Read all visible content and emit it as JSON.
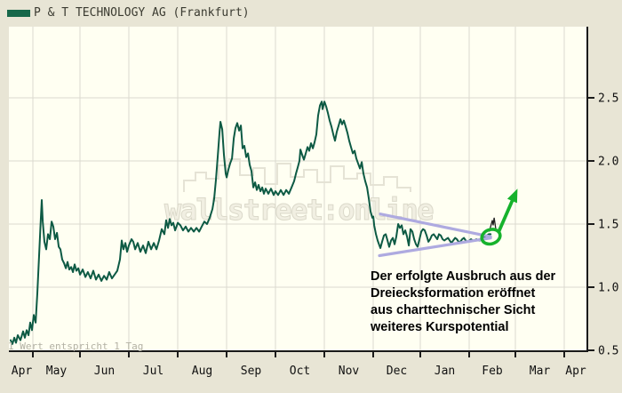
{
  "header": {
    "title": "P & T TECHNOLOGY AG (Frankfurt)",
    "legend_color": "#17684a"
  },
  "footnote": "1 Wert entspricht 1 Tag",
  "watermark": "wallstreet:online",
  "annotation": {
    "lines": [
      "Der erfolgte Ausbruch aus der",
      "Dreiecksformation eröffnet",
      "aus charttechnischer Sicht",
      "weiteres Kurspotential"
    ]
  },
  "colors": {
    "price_line": "#0d5a44",
    "triangle": "#aeaae0",
    "breakout_green": "#16b22c",
    "axis": "#1a1a1a",
    "grid": "#dbdad0",
    "plot_bg": "#fffff2",
    "frame_bg": "#e8e5d5"
  },
  "chart_data": {
    "type": "line",
    "title": "P & T TECHNOLOGY AG (Frankfurt)",
    "x_axis": {
      "unit": "day",
      "note": "1 Wert entspricht 1 Tag",
      "month_labels": [
        "Apr",
        "May",
        "Jun",
        "Jul",
        "Aug",
        "Sep",
        "Oct",
        "Nov",
        "Dec",
        "Jan",
        "Feb",
        "Mar",
        "Apr"
      ]
    },
    "y_axis": {
      "ticks": [
        0.5,
        1.0,
        1.5,
        2.0,
        2.5
      ],
      "range": [
        0.5,
        3.05
      ],
      "grid": true
    },
    "legend_position": "top-left",
    "series": [
      {
        "name": "P & T TECHNOLOGY AG",
        "color": "#0d5a44",
        "points": [
          [
            0,
            0.58
          ],
          [
            1.1,
            0.55
          ],
          [
            2.3,
            0.6
          ],
          [
            3.4,
            0.56
          ],
          [
            4.5,
            0.62
          ],
          [
            6.2,
            0.58
          ],
          [
            7.9,
            0.65
          ],
          [
            9,
            0.6
          ],
          [
            10.1,
            0.66
          ],
          [
            11.3,
            0.62
          ],
          [
            12.4,
            0.72
          ],
          [
            13.5,
            0.66
          ],
          [
            14.6,
            0.78
          ],
          [
            15.8,
            0.72
          ],
          [
            16.9,
            0.95
          ],
          [
            18,
            1.25
          ],
          [
            19.1,
            1.55
          ],
          [
            19.7,
            1.69
          ],
          [
            20.3,
            1.52
          ],
          [
            21.4,
            1.36
          ],
          [
            22.5,
            1.3
          ],
          [
            23.6,
            1.42
          ],
          [
            24.8,
            1.38
          ],
          [
            25.9,
            1.52
          ],
          [
            27,
            1.48
          ],
          [
            28.1,
            1.38
          ],
          [
            29.3,
            1.43
          ],
          [
            30.4,
            1.32
          ],
          [
            31.5,
            1.3
          ],
          [
            32.6,
            1.22
          ],
          [
            33.8,
            1.19
          ],
          [
            34.9,
            1.15
          ],
          [
            36,
            1.2
          ],
          [
            37.1,
            1.14
          ],
          [
            38.3,
            1.16
          ],
          [
            39.4,
            1.12
          ],
          [
            40.5,
            1.18
          ],
          [
            41.6,
            1.13
          ],
          [
            42.8,
            1.15
          ],
          [
            43.9,
            1.1
          ],
          [
            45.6,
            1.14
          ],
          [
            47.3,
            1.08
          ],
          [
            48.9,
            1.12
          ],
          [
            50.6,
            1.07
          ],
          [
            52.3,
            1.13
          ],
          [
            54,
            1.06
          ],
          [
            55.7,
            1.1
          ],
          [
            57.4,
            1.05
          ],
          [
            59.1,
            1.09
          ],
          [
            60.8,
            1.06
          ],
          [
            62.4,
            1.12
          ],
          [
            64.1,
            1.07
          ],
          [
            65.8,
            1.1
          ],
          [
            67.5,
            1.13
          ],
          [
            69.2,
            1.22
          ],
          [
            70.3,
            1.37
          ],
          [
            71.4,
            1.3
          ],
          [
            72.6,
            1.35
          ],
          [
            73.7,
            1.28
          ],
          [
            74.8,
            1.33
          ],
          [
            76.5,
            1.38
          ],
          [
            77.6,
            1.36
          ],
          [
            78.8,
            1.3
          ],
          [
            80.4,
            1.35
          ],
          [
            82.1,
            1.28
          ],
          [
            83.8,
            1.33
          ],
          [
            85.5,
            1.27
          ],
          [
            87.2,
            1.36
          ],
          [
            88.9,
            1.3
          ],
          [
            90.6,
            1.35
          ],
          [
            92.3,
            1.3
          ],
          [
            93.9,
            1.37
          ],
          [
            95.6,
            1.46
          ],
          [
            97.3,
            1.42
          ],
          [
            98.4,
            1.53
          ],
          [
            99.6,
            1.47
          ],
          [
            100.7,
            1.54
          ],
          [
            101.8,
            1.49
          ],
          [
            102.9,
            1.51
          ],
          [
            104.1,
            1.45
          ],
          [
            105.8,
            1.51
          ],
          [
            107.4,
            1.49
          ],
          [
            109.1,
            1.45
          ],
          [
            110.8,
            1.48
          ],
          [
            112.5,
            1.44
          ],
          [
            114.2,
            1.47
          ],
          [
            115.9,
            1.44
          ],
          [
            117.6,
            1.47
          ],
          [
            119.3,
            1.44
          ],
          [
            120.9,
            1.48
          ],
          [
            122.6,
            1.52
          ],
          [
            124.3,
            1.5
          ],
          [
            126,
            1.55
          ],
          [
            127.7,
            1.62
          ],
          [
            128.8,
            1.7
          ],
          [
            129.9,
            1.85
          ],
          [
            131.1,
            2.04
          ],
          [
            132.2,
            2.23
          ],
          [
            132.8,
            2.31
          ],
          [
            133.9,
            2.25
          ],
          [
            135,
            2.05
          ],
          [
            136.1,
            1.9
          ],
          [
            136.7,
            1.87
          ],
          [
            137.8,
            1.93
          ],
          [
            138.9,
            1.98
          ],
          [
            140.1,
            2.02
          ],
          [
            141.2,
            2.18
          ],
          [
            142.3,
            2.26
          ],
          [
            143.4,
            2.3
          ],
          [
            144.6,
            2.24
          ],
          [
            145.7,
            2.28
          ],
          [
            146.8,
            2.1
          ],
          [
            147.9,
            2.12
          ],
          [
            149.1,
            2.03
          ],
          [
            150.2,
            2.06
          ],
          [
            151.3,
            1.97
          ],
          [
            152.4,
            1.92
          ],
          [
            153.6,
            1.79
          ],
          [
            154.7,
            1.83
          ],
          [
            155.8,
            1.77
          ],
          [
            156.9,
            1.81
          ],
          [
            158.1,
            1.76
          ],
          [
            159.2,
            1.79
          ],
          [
            160.3,
            1.74
          ],
          [
            161.4,
            1.78
          ],
          [
            163.1,
            1.74
          ],
          [
            164.8,
            1.78
          ],
          [
            166.5,
            1.73
          ],
          [
            167.6,
            1.76
          ],
          [
            169.3,
            1.73
          ],
          [
            171,
            1.77
          ],
          [
            172.7,
            1.73
          ],
          [
            174.4,
            1.77
          ],
          [
            176.1,
            1.74
          ],
          [
            177.8,
            1.79
          ],
          [
            179.4,
            1.84
          ],
          [
            180.6,
            1.9
          ],
          [
            181.7,
            1.95
          ],
          [
            182.8,
            2.0
          ],
          [
            183.4,
            2.09
          ],
          [
            184.5,
            2.05
          ],
          [
            185.6,
            2.01
          ],
          [
            186.8,
            2.06
          ],
          [
            187.9,
            2.11
          ],
          [
            189,
            2.08
          ],
          [
            190.1,
            2.14
          ],
          [
            191.3,
            2.1
          ],
          [
            192.4,
            2.15
          ],
          [
            193.5,
            2.21
          ],
          [
            194.6,
            2.36
          ],
          [
            195.8,
            2.44
          ],
          [
            196.9,
            2.47
          ],
          [
            197.4,
            2.41
          ],
          [
            198.6,
            2.47
          ],
          [
            199.7,
            2.43
          ],
          [
            200.8,
            2.38
          ],
          [
            201.9,
            2.32
          ],
          [
            203.1,
            2.27
          ],
          [
            204.2,
            2.21
          ],
          [
            205.3,
            2.16
          ],
          [
            206.4,
            2.23
          ],
          [
            207.6,
            2.28
          ],
          [
            208.7,
            2.33
          ],
          [
            209.8,
            2.29
          ],
          [
            210.9,
            2.32
          ],
          [
            212.1,
            2.27
          ],
          [
            213.2,
            2.22
          ],
          [
            214.3,
            2.16
          ],
          [
            215.4,
            2.11
          ],
          [
            216.6,
            2.06
          ],
          [
            217.7,
            2.08
          ],
          [
            218.8,
            2.02
          ],
          [
            219.9,
            1.98
          ],
          [
            221.1,
            1.94
          ],
          [
            222.2,
            1.99
          ],
          [
            223.3,
            1.9
          ],
          [
            224.4,
            1.84
          ],
          [
            225.6,
            1.79
          ],
          [
            226.7,
            1.7
          ],
          [
            227.8,
            1.6
          ],
          [
            228.9,
            1.55
          ],
          [
            229.5,
            1.56
          ],
          [
            230.1,
            1.49
          ],
          [
            231.2,
            1.42
          ],
          [
            232.3,
            1.37
          ],
          [
            233.4,
            1.33
          ],
          [
            234,
            1.31
          ],
          [
            235.1,
            1.36
          ],
          [
            236.3,
            1.41
          ],
          [
            237.4,
            1.42
          ],
          [
            238.5,
            1.37
          ],
          [
            239.6,
            1.32
          ],
          [
            240.8,
            1.37
          ],
          [
            241.9,
            1.39
          ],
          [
            243,
            1.34
          ],
          [
            244.1,
            1.4
          ],
          [
            245.3,
            1.5
          ],
          [
            246.4,
            1.47
          ],
          [
            247.5,
            1.49
          ],
          [
            248.6,
            1.42
          ],
          [
            249.8,
            1.45
          ],
          [
            250.9,
            1.4
          ],
          [
            252,
            1.33
          ],
          [
            253.1,
            1.46
          ],
          [
            254.3,
            1.44
          ],
          [
            255.4,
            1.38
          ],
          [
            256.5,
            1.34
          ],
          [
            257.6,
            1.32
          ],
          [
            258.8,
            1.38
          ],
          [
            259.9,
            1.44
          ],
          [
            261,
            1.46
          ],
          [
            262.1,
            1.45
          ],
          [
            263.3,
            1.41
          ],
          [
            264.4,
            1.36
          ],
          [
            265.5,
            1.38
          ],
          [
            266.6,
            1.41
          ],
          [
            267.8,
            1.42
          ],
          [
            268.9,
            1.4
          ],
          [
            270,
            1.38
          ],
          [
            271.1,
            1.42
          ],
          [
            272.3,
            1.41
          ],
          [
            273.4,
            1.38
          ],
          [
            274.5,
            1.37
          ],
          [
            275.6,
            1.38
          ],
          [
            276.8,
            1.39
          ],
          [
            277.9,
            1.37
          ],
          [
            279,
            1.35
          ],
          [
            280.1,
            1.37
          ],
          [
            281.3,
            1.39
          ],
          [
            282.4,
            1.38
          ],
          [
            283.5,
            1.36
          ],
          [
            284.6,
            1.36
          ],
          [
            285.8,
            1.38
          ],
          [
            286.9,
            1.39
          ],
          [
            288,
            1.37
          ],
          [
            289.1,
            1.36
          ],
          [
            290.3,
            1.37
          ],
          [
            291.4,
            1.38
          ],
          [
            292.5,
            1.37
          ],
          [
            293.6,
            1.37
          ],
          [
            294.8,
            1.38
          ],
          [
            295.9,
            1.37
          ],
          [
            297,
            1.37
          ],
          [
            298.1,
            1.39
          ],
          [
            299.3,
            1.39
          ],
          [
            300.4,
            1.4
          ],
          [
            301.5,
            1.41
          ],
          [
            302.6,
            1.42
          ],
          [
            303.8,
            1.42
          ]
        ]
      }
    ],
    "annotations": {
      "triangle": {
        "color": "#aeaae0",
        "upper": [
          [
            234,
            1.58
          ],
          [
            303.8,
            1.4
          ]
        ],
        "lower": [
          [
            233.4,
            1.25
          ],
          [
            303.8,
            1.39
          ]
        ]
      },
      "breakout_spike": {
        "color": "#1f1f1f",
        "points": [
          [
            302.9,
            1.44
          ],
          [
            304.9,
            1.53
          ],
          [
            305.4,
            1.49
          ],
          [
            306,
            1.55
          ],
          [
            307.1,
            1.46
          ]
        ]
      },
      "breakout_circle": {
        "color": "#16b22c",
        "center": [
          304,
          1.4
        ]
      },
      "arrow": {
        "color": "#16b22c",
        "from": [
          308.6,
          1.43
        ],
        "to": [
          320.8,
          1.78
        ]
      }
    }
  }
}
